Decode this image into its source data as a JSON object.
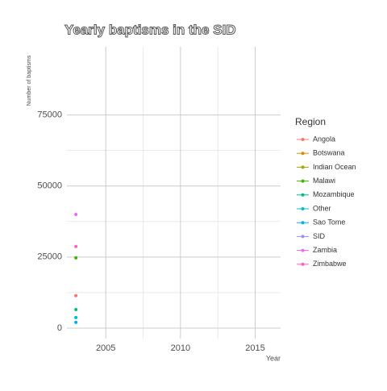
{
  "chart_data": {
    "type": "line",
    "title": "Yearly baptisms in the SID",
    "x_label": "Year",
    "y_label": "Number of baptisms",
    "legend_title": "Region",
    "x": [
      2003
    ],
    "series": [
      {
        "name": "Angola",
        "color": "#F8766D",
        "values": [
          11400
        ]
      },
      {
        "name": "Botswana",
        "color": "#D89000",
        "values": [
          null
        ]
      },
      {
        "name": "Indian Ocean",
        "color": "#A3A500",
        "values": [
          null
        ]
      },
      {
        "name": "Malawi",
        "color": "#39B600",
        "values": [
          24700
        ]
      },
      {
        "name": "Mozambique",
        "color": "#00BF7D",
        "values": [
          6500
        ]
      },
      {
        "name": "Other",
        "color": "#00BFC4",
        "values": [
          3700
        ]
      },
      {
        "name": "Sao Tome",
        "color": "#00B0F6",
        "values": [
          2000
        ]
      },
      {
        "name": "SID",
        "color": "#9590FF",
        "values": [
          null
        ]
      },
      {
        "name": "Zambia",
        "color": "#E76BF3",
        "values": [
          40000
        ]
      },
      {
        "name": "Zimbabwe",
        "color": "#FF62BC",
        "values": [
          28700
        ]
      }
    ],
    "xlim": [
      2002.4,
      2016.7
    ],
    "xticks": [
      2005,
      2010,
      2015
    ],
    "ylim": [
      -3700,
      99000
    ],
    "yticks": [
      0,
      25000,
      50000,
      75000
    ],
    "grid": true,
    "legend": "right"
  }
}
